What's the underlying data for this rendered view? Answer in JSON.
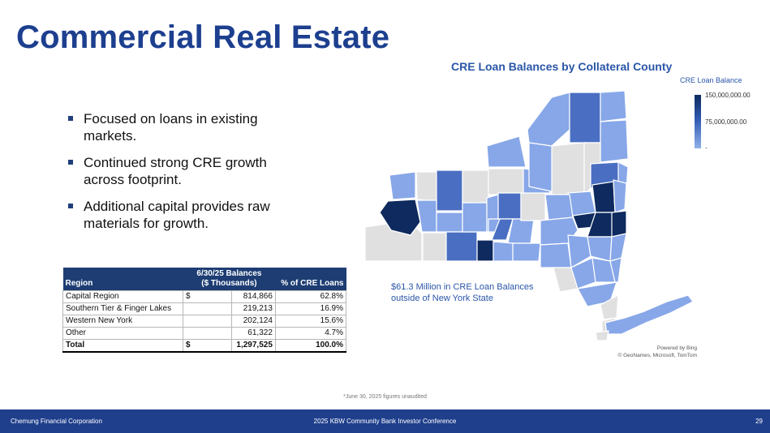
{
  "title": "Commercial Real Estate",
  "bullets": [
    "Focused on loans in existing markets.",
    "Continued strong CRE growth across footprint.",
    "Additional capital provides raw materials for growth."
  ],
  "table": {
    "headers": {
      "region": "Region",
      "balances_line1": "6/30/25 Balances",
      "balances_line2": "($ Thousands)",
      "pct": "% of CRE Loans"
    },
    "rows": [
      {
        "region": "Capital Region",
        "dollar": "$",
        "balance": "814,866",
        "pct": "62.8%"
      },
      {
        "region": "Southern Tier & Finger Lakes",
        "dollar": "",
        "balance": "219,213",
        "pct": "16.9%"
      },
      {
        "region": "Western New York",
        "dollar": "",
        "balance": "202,124",
        "pct": "15.6%"
      },
      {
        "region": "Other",
        "dollar": "",
        "balance": "61,322",
        "pct": "4.7%"
      }
    ],
    "total": {
      "region": "Total",
      "dollar": "$",
      "balance": "1,297,525",
      "pct": "100.0%"
    }
  },
  "map": {
    "title": "CRE Loan Balances by Collateral County",
    "legend_title": "CRE Loan Balance",
    "legend_labels": [
      "150,000,000.00",
      "75,000,000.00",
      "-"
    ],
    "outside_note": "$61.3 Million in CRE Loan Balances outside of New York State",
    "powered_by": "Powered by Bing",
    "attribution": "© GeoNames, Microsoft, TomTom",
    "colors": {
      "none": "#e0e0e0",
      "low": "#87a7e8",
      "mid": "#4a6fc2",
      "high": "#0e2a5e"
    }
  },
  "footnote": "*June 30, 2025 figures unaudited",
  "footer": {
    "company": "Chemung Financial Corporation",
    "event": "2025 KBW Community Bank Investor Conference",
    "page": "29"
  }
}
